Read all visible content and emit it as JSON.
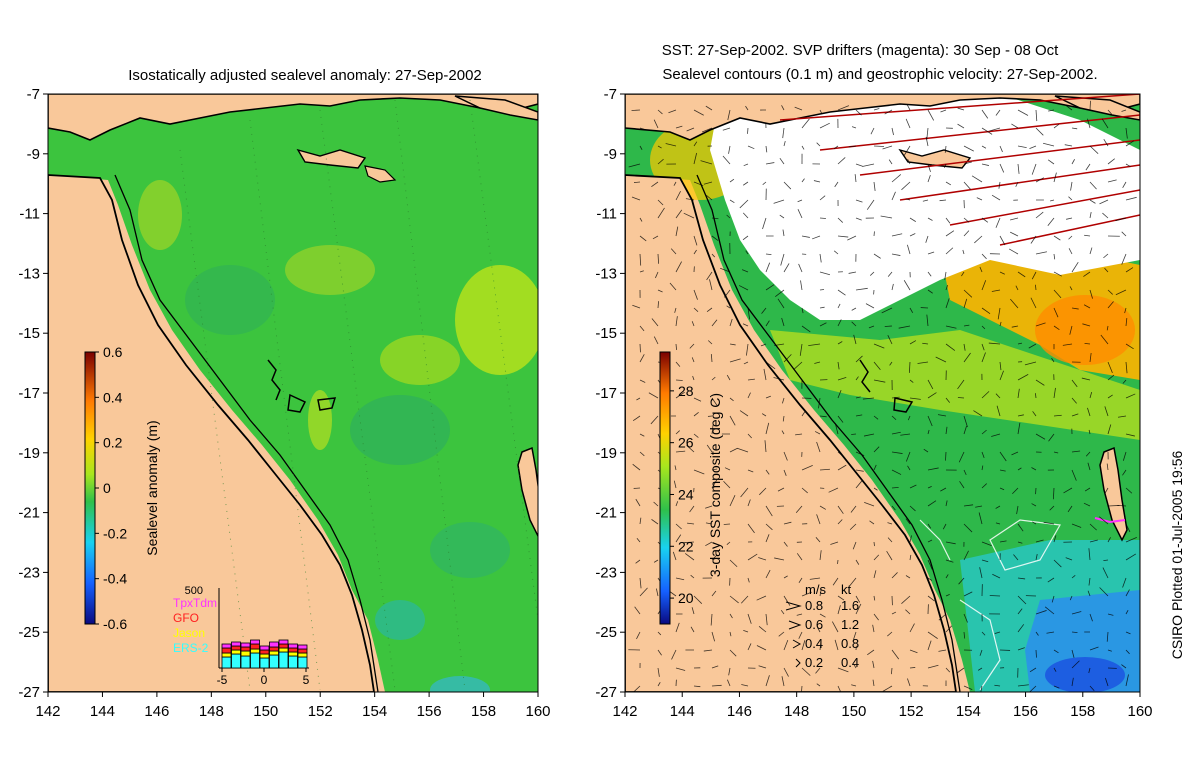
{
  "left_panel": {
    "title": "Isostatically adjusted sealevel anomaly: 27-Sep-2002",
    "y_ticks": [
      "-7",
      "-9",
      "-11",
      "-13",
      "-15",
      "-17",
      "-19",
      "-21",
      "-23",
      "-25",
      "-27"
    ],
    "x_ticks": [
      "142",
      "144",
      "146",
      "148",
      "150",
      "152",
      "154",
      "156",
      "158",
      "160"
    ],
    "colorbar": {
      "label": "Sealevel anomaly (m)",
      "ticks": [
        "0.6",
        "0.4",
        "0.2",
        "0",
        "-0.2",
        "-0.4",
        "-0.6"
      ],
      "range": [
        -0.6,
        0.6
      ]
    },
    "inset": {
      "top_value": "500",
      "legend": [
        {
          "label": "TpxTdm",
          "color": "#ff33ff"
        },
        {
          "label": "GFO",
          "color": "#ff2020"
        },
        {
          "label": "Jason",
          "color": "#ffff00"
        },
        {
          "label": "ERS-2",
          "color": "#33ffff"
        }
      ],
      "x_ticks": [
        "-5",
        "0",
        "5"
      ]
    }
  },
  "right_panel": {
    "title_line1": "SST: 27-Sep-2002. SVP drifters (magenta): 30 Sep - 08 Oct",
    "title_line2": "Sealevel contours (0.1 m) and geostrophic velocity: 27-Sep-2002.",
    "y_ticks": [
      "-7",
      "-9",
      "-11",
      "-13",
      "-15",
      "-17",
      "-19",
      "-21",
      "-23",
      "-25",
      "-27"
    ],
    "x_ticks": [
      "142",
      "144",
      "146",
      "148",
      "150",
      "152",
      "154",
      "156",
      "158",
      "160"
    ],
    "colorbar": {
      "label": "3-day SST composite (deg C)",
      "ticks": [
        "28",
        "26",
        "24",
        "22",
        "20"
      ],
      "range": [
        19,
        29.5
      ]
    },
    "velocity_legend": {
      "header_ms": "m/s",
      "header_kt": "kt",
      "rows": [
        {
          "ms": "0.8",
          "kt": "1.6"
        },
        {
          "ms": "0.6",
          "kt": "1.2"
        },
        {
          "ms": "0.4",
          "kt": "0.8"
        },
        {
          "ms": "0.2",
          "kt": "0.4"
        }
      ]
    }
  },
  "credit": "CSIRO Plotted 01-Jul-2005 19:56",
  "colors": {
    "land": "#f9c89a",
    "sla_green": "#39c43a",
    "sst_green": "#2eb84a",
    "cloud": "#ffffff",
    "coast": "#000000"
  }
}
